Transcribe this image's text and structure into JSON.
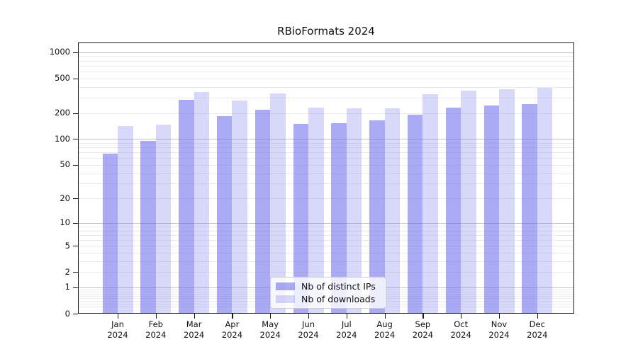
{
  "title": "RBioFormats 2024",
  "legend": {
    "items": [
      {
        "label": "Nb of distinct IPs",
        "series": "distinct_ips"
      },
      {
        "label": "Nb of downloads",
        "series": "downloads"
      }
    ]
  },
  "colors": {
    "bar_distinct_ips": "rgba(100,100,237,0.55)",
    "bar_downloads": "rgba(100,100,237,0.25)",
    "grid_major": "#c3c3c3",
    "grid_minor": "#ebebeb",
    "spine": "#1a1a1a",
    "text": "#111111"
  },
  "chart_data": {
    "type": "bar",
    "title": "RBioFormats 2024",
    "categories": [
      "Jan",
      "Feb",
      "Mar",
      "Apr",
      "May",
      "Jun",
      "Jul",
      "Aug",
      "Sep",
      "Oct",
      "Nov",
      "Dec"
    ],
    "year_label": "2024",
    "series": [
      {
        "name": "Nb of distinct IPs",
        "key": "distinct_ips",
        "values": [
          67,
          95,
          281,
          185,
          219,
          150,
          151,
          163,
          190,
          230,
          242,
          251
        ]
      },
      {
        "name": "Nb of downloads",
        "key": "downloads",
        "values": [
          142,
          147,
          350,
          279,
          335,
          230,
          227,
          224,
          327,
          364,
          375,
          390
        ]
      }
    ],
    "xlabel": "",
    "ylabel": "",
    "yscale": "log10(1+y)",
    "ylim": [
      0,
      1291
    ],
    "y_ticks": [
      1000,
      500,
      200,
      100,
      50,
      20,
      10,
      5,
      2,
      1,
      0
    ],
    "grid": "horizontal, major at decades + minor",
    "legend_position": "bottom-center"
  }
}
